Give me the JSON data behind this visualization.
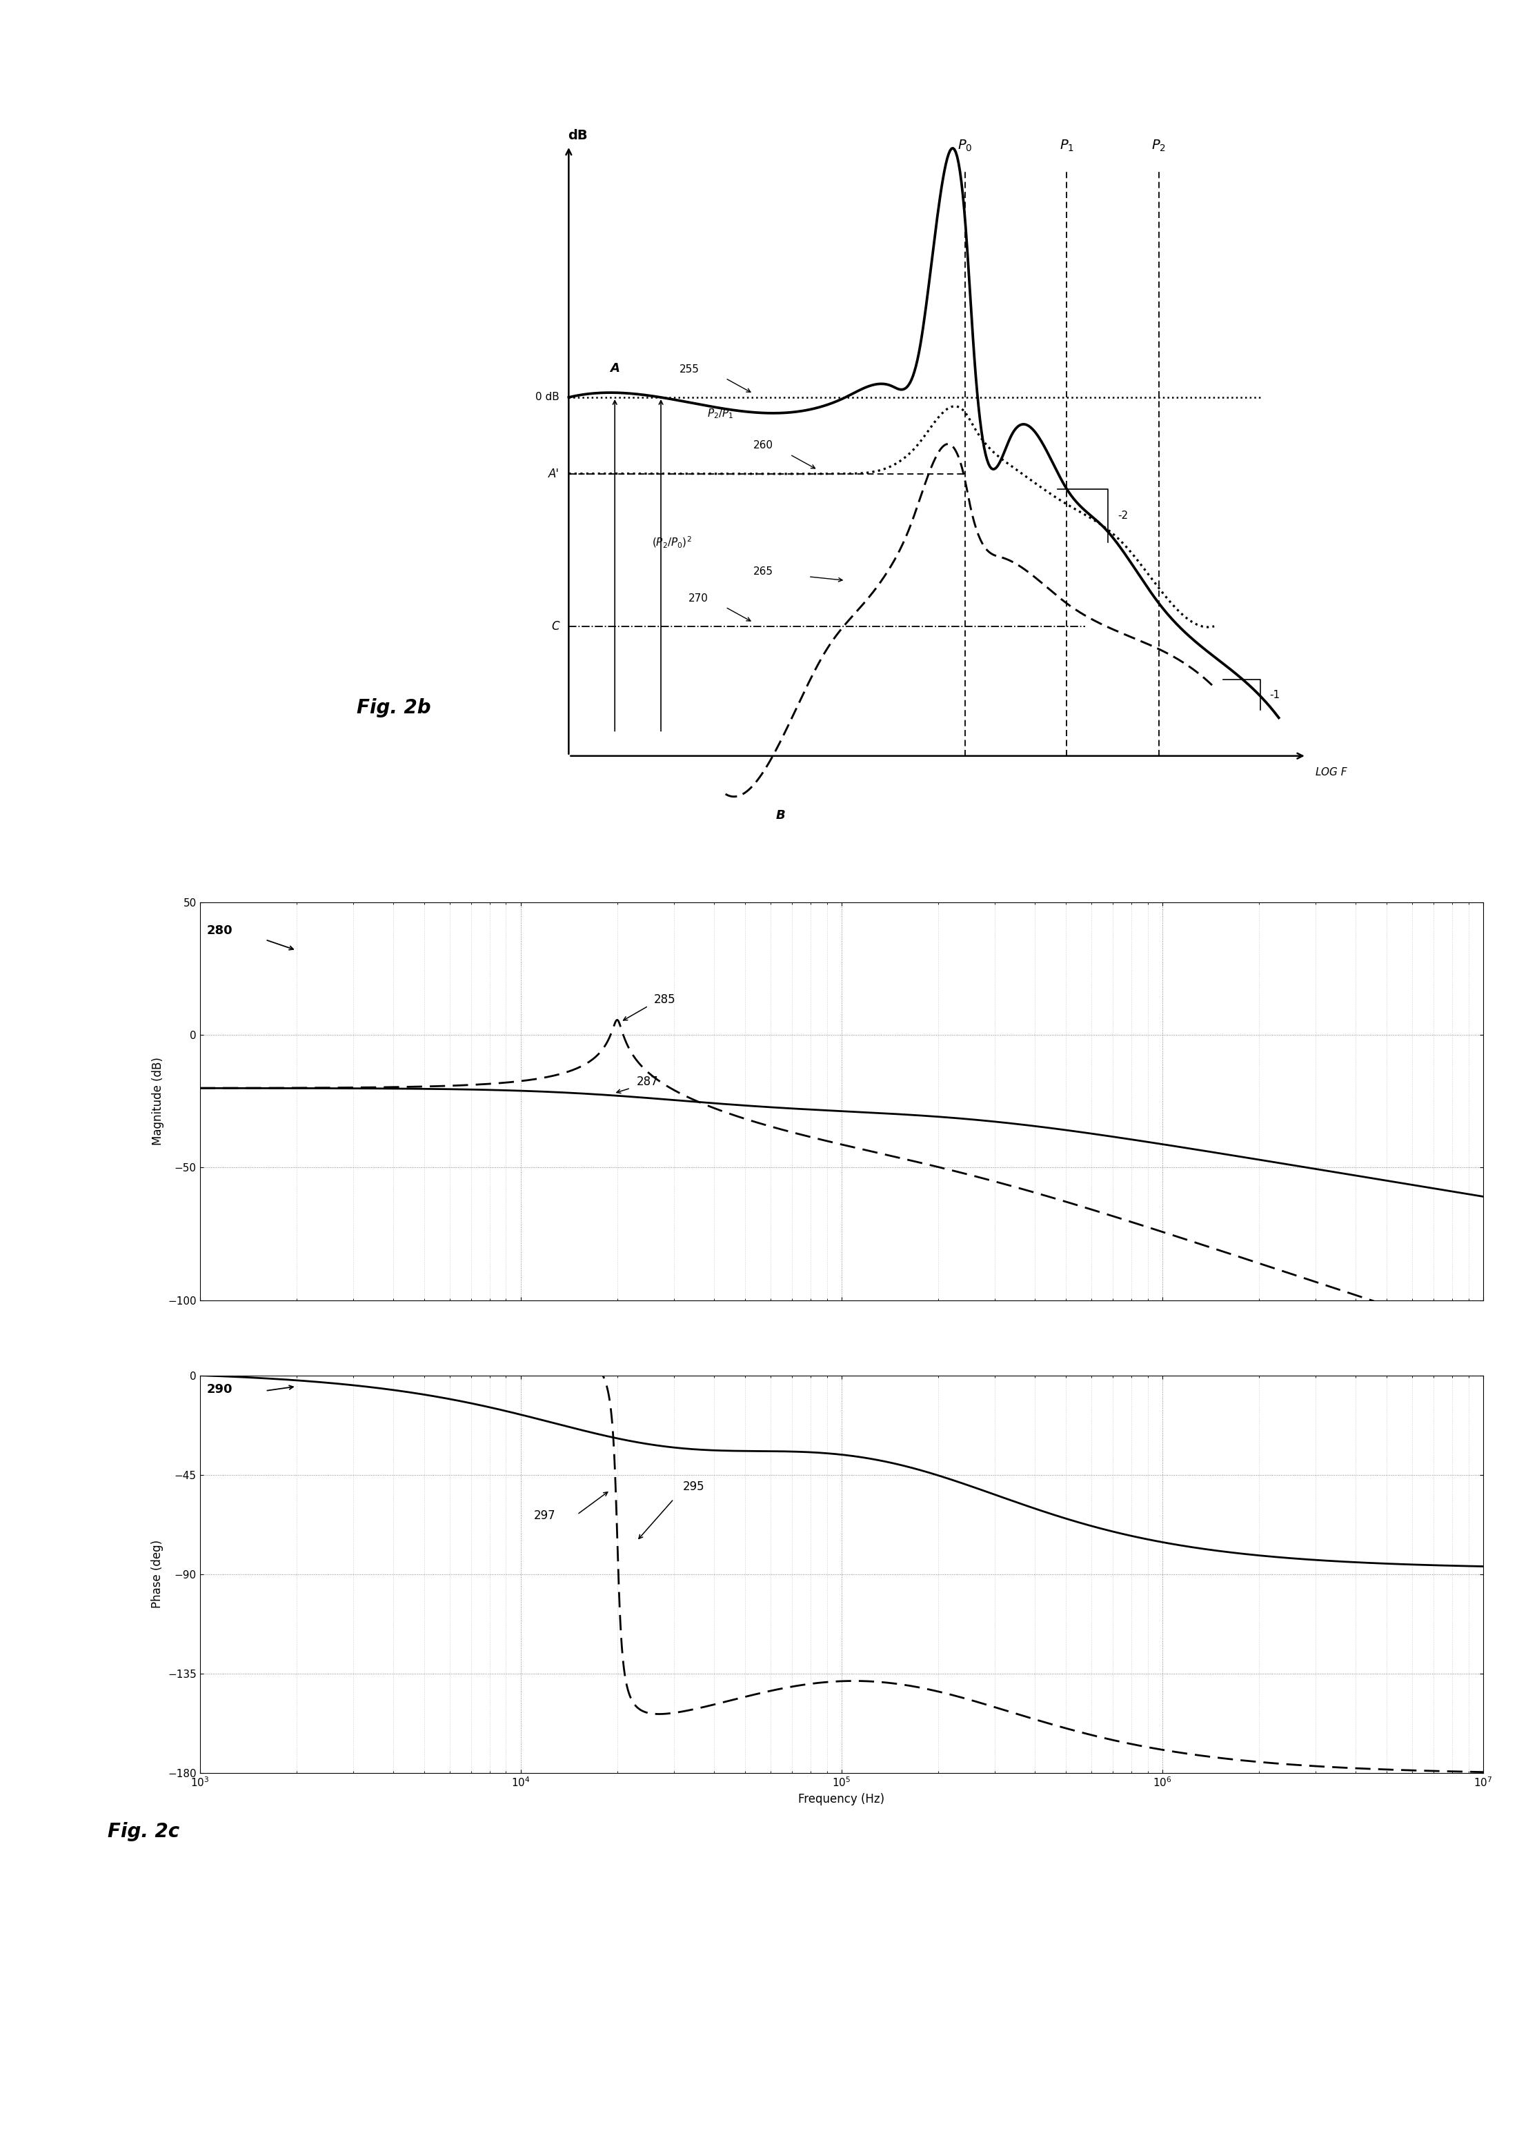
{
  "fig2b": {
    "xlim": [
      0,
      10
    ],
    "ylim": [
      0,
      10
    ],
    "ax_origin_x": 1.5,
    "ax_origin_y": 1.5,
    "ax_top_y": 9.5,
    "ax_right_x": 9.5,
    "zero_dB_y": 6.2,
    "Aprime_y": 5.2,
    "C_y": 3.2,
    "P0_x": 5.8,
    "P1_x": 6.9,
    "P2_x": 7.9,
    "B_x": 3.8,
    "B_bottom_y": 0.8
  },
  "fig2c": {
    "freq_range_log": [
      3,
      7
    ],
    "mag_ylim": [
      -100,
      50
    ],
    "mag_yticks": [
      -100,
      -50,
      0,
      50
    ],
    "phase_ylim": [
      -180,
      0
    ],
    "phase_yticks": [
      -180,
      -135,
      -90,
      -45,
      0
    ],
    "xlabel": "Frequency (Hz)",
    "mag_ylabel": "Magnitude (dB)",
    "phase_ylabel": "Phase (deg)"
  }
}
